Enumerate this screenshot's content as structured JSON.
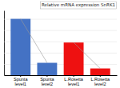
{
  "chart_data": {
    "type": "bar",
    "annotations": [
      "Relative mRNA   expression SnRK1"
    ],
    "categories": [
      "Spunta\nlevel1",
      "Spunta\nlevel2",
      "L.Rosetta\nlevel1",
      "L.Rosetta\nlevel2"
    ],
    "values": [
      1.0,
      0.22,
      0.58,
      0.12
    ],
    "colors": [
      "#4472C4",
      "#4472C4",
      "#EE1111",
      "#EE1111"
    ],
    "ylim": [
      0,
      1.15
    ],
    "yticks": [
      0,
      0.2,
      0.4,
      0.6,
      0.8,
      1.0
    ],
    "grid": true,
    "tick_labels": "x"
  }
}
